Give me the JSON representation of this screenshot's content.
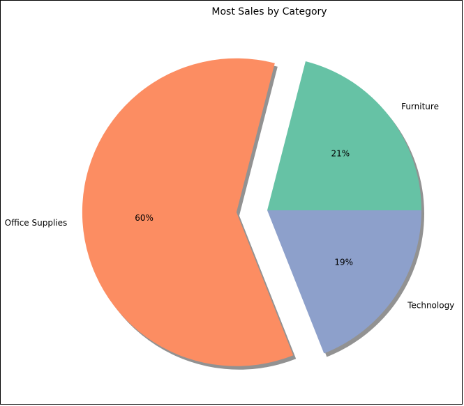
{
  "chart_data": {
    "type": "pie",
    "title": "Most Sales by Category",
    "slices": [
      {
        "label": "Furniture",
        "value": 21,
        "pct_label": "21%",
        "color": "#66c2a5"
      },
      {
        "label": "Office Supplies",
        "value": 60,
        "pct_label": "60%",
        "color": "#fc8d62"
      },
      {
        "label": "Technology",
        "value": 19,
        "pct_label": "19%",
        "color": "#8da0cb"
      }
    ],
    "exploded": "Office Supplies",
    "shadow": true
  }
}
